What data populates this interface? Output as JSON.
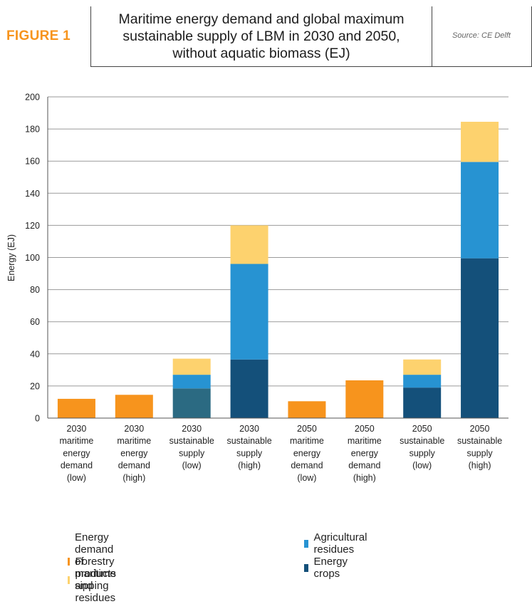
{
  "header": {
    "figure_label": "FIGURE 1",
    "title": "Maritime energy demand and global maximum\nsustainable supply of LBM in 2030 and 2050,\nwithout aquatic biomass (EJ)",
    "source": "Source: CE Delft"
  },
  "colors": {
    "demand": "#f7941d",
    "agricultural": "#2793d2",
    "forestry": "#fdd26e",
    "energy_crops": "#14507a",
    "energy_crops_2030_low": "#2b6a82"
  },
  "chart_data": {
    "type": "bar",
    "stacked": true,
    "ylabel": "Energy (EJ)",
    "ylim": [
      0,
      200
    ],
    "yticks": [
      0,
      20,
      40,
      60,
      80,
      100,
      120,
      140,
      160,
      180,
      200
    ],
    "grid": true,
    "categories": [
      [
        "2030",
        "maritime",
        "energy",
        "demand",
        "(low)"
      ],
      [
        "2030",
        "maritime",
        "energy",
        "demand",
        "(high)"
      ],
      [
        "2030",
        "sustainable",
        "supply",
        "(low)"
      ],
      [
        "2030",
        "sustainable",
        "supply",
        "(high)"
      ],
      [
        "2050",
        "maritime",
        "energy",
        "demand",
        "(low)"
      ],
      [
        "2050",
        "maritime",
        "energy",
        "demand",
        "(high)"
      ],
      [
        "2050",
        "sustainable",
        "supply",
        "(low)"
      ],
      [
        "2050",
        "sustainable",
        "supply",
        "(high)"
      ]
    ],
    "series": [
      {
        "name": "Energy demand of maritime sipping",
        "key": "demand",
        "values": [
          12,
          14.5,
          0,
          0,
          10.5,
          23.5,
          0,
          0
        ]
      },
      {
        "name": "Energy crops",
        "key": "energy_crops",
        "values": [
          0,
          0,
          18.5,
          36.5,
          0,
          0,
          19,
          99.5
        ]
      },
      {
        "name": "Agricultural residues",
        "key": "agricultural",
        "values": [
          0,
          0,
          8.5,
          59.5,
          0,
          0,
          8,
          60
        ]
      },
      {
        "name": "Forestry products and residues",
        "key": "forestry",
        "values": [
          0,
          0,
          10,
          24,
          0,
          0,
          9.5,
          25
        ]
      }
    ],
    "legend_placement": "bottom"
  },
  "legend": [
    {
      "label": "Energy demand of maritime sipping",
      "key": "demand"
    },
    {
      "label": "Agricultural residues",
      "key": "agricultural"
    },
    {
      "label": "Forestry products and residues",
      "key": "forestry"
    },
    {
      "label": "Energy crops",
      "key": "energy_crops"
    }
  ]
}
